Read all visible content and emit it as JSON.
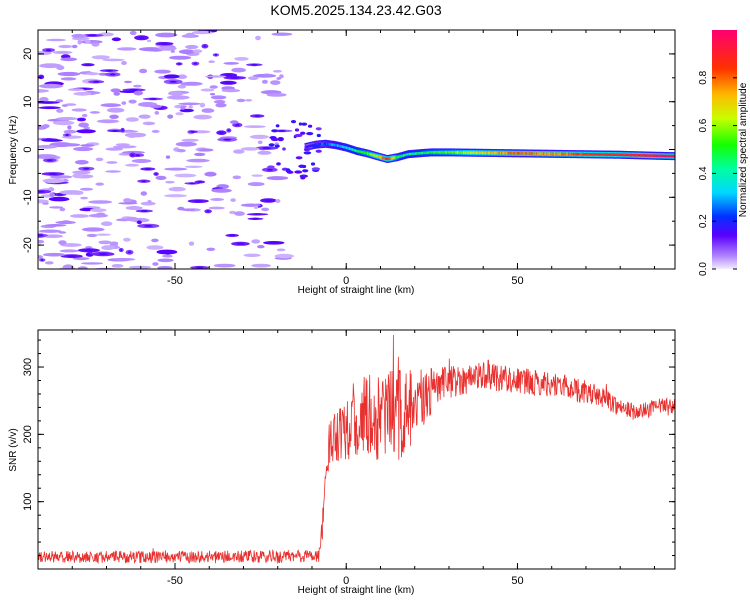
{
  "title": "KOM5.2025.134.23.42.G03",
  "chart_data": [
    {
      "type": "heatmap",
      "name": "spectrogram",
      "xlabel": "Height of straight line (km)",
      "ylabel": "Frequency (Hz)",
      "xlim": [
        -90,
        96
      ],
      "ylim": [
        -25,
        25
      ],
      "xticks": [
        -50,
        0,
        50
      ],
      "yticks": [
        -20,
        -10,
        0,
        10,
        20
      ],
      "colorbar": {
        "label": "Normalized spectral amplitude",
        "range": [
          0,
          1
        ],
        "ticks": [
          "0.0",
          "0.2",
          "0.4",
          "0.6",
          "0.8"
        ],
        "tick_values": [
          0,
          0.2,
          0.4,
          0.6,
          0.8
        ]
      },
      "ridge": {
        "x": [
          -12,
          -9,
          -6,
          -3,
          0,
          3,
          6,
          9,
          12,
          15,
          18,
          21,
          25,
          30,
          40,
          50,
          60,
          70,
          80,
          90,
          96
        ],
        "frequency": [
          0.5,
          1.0,
          1.2,
          0.9,
          0.4,
          -0.3,
          -0.8,
          -1.4,
          -2.0,
          -1.6,
          -1.0,
          -0.8,
          -0.6,
          -0.6,
          -0.7,
          -0.8,
          -0.9,
          -1.0,
          -1.1,
          -1.3,
          -1.4
        ],
        "amplitude": [
          0.15,
          0.2,
          0.25,
          0.3,
          0.35,
          0.45,
          0.55,
          0.65,
          0.9,
          0.5,
          0.4,
          0.45,
          0.5,
          0.55,
          0.7,
          0.8,
          0.75,
          0.85,
          0.9,
          0.95,
          1.0
        ]
      },
      "noise_region": {
        "x": [
          -90,
          -18
        ],
        "frequency": [
          -25,
          25
        ],
        "amplitude": [
          0.0,
          0.12
        ]
      }
    },
    {
      "type": "line",
      "name": "snr",
      "xlabel": "Height of straight line (km)",
      "ylabel": "SNR (v/v)",
      "xlim": [
        -90,
        96
      ],
      "ylim": [
        0,
        355
      ],
      "xticks": [
        -50,
        0,
        50
      ],
      "yticks": [
        100,
        200,
        300
      ],
      "color": "#e8302e",
      "envelope": {
        "x": [
          -90,
          -50,
          -20,
          -8,
          -7,
          -5,
          -3,
          0,
          5,
          10,
          15,
          20,
          25,
          30,
          35,
          40,
          45,
          50,
          55,
          60,
          65,
          70,
          75,
          80,
          85,
          90,
          96
        ],
        "mean": [
          18,
          18,
          18,
          20,
          60,
          185,
          205,
          215,
          225,
          225,
          230,
          235,
          265,
          278,
          282,
          290,
          285,
          280,
          276,
          275,
          270,
          262,
          255,
          240,
          232,
          240,
          244
        ],
        "spread": [
          9,
          9,
          10,
          10,
          20,
          32,
          45,
          55,
          60,
          70,
          75,
          60,
          35,
          25,
          22,
          22,
          22,
          20,
          20,
          18,
          18,
          18,
          15,
          14,
          12,
          12,
          12
        ]
      }
    }
  ]
}
